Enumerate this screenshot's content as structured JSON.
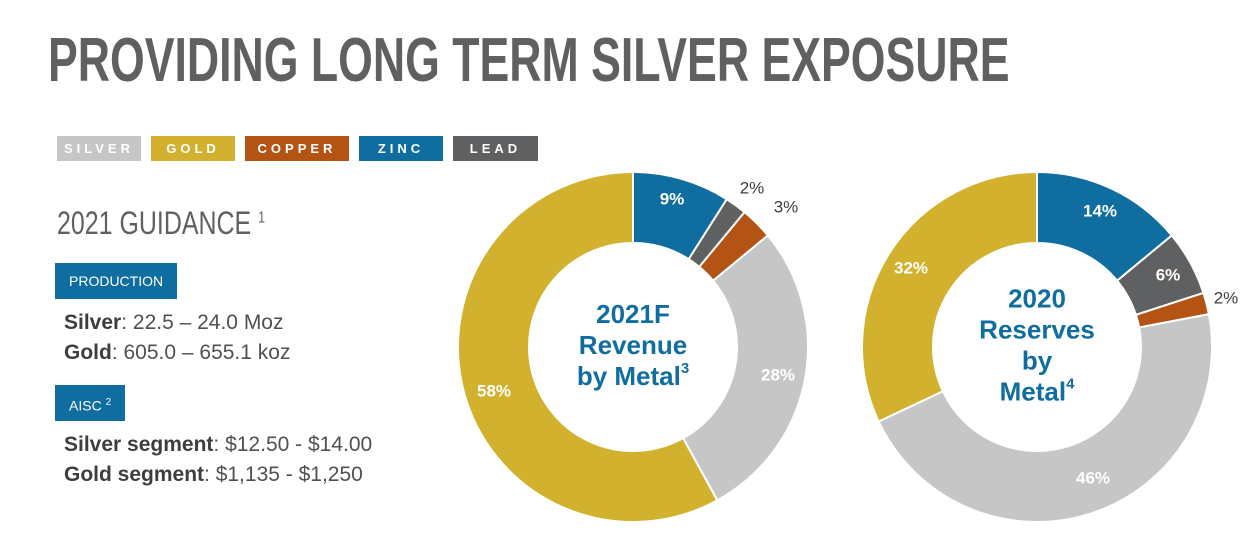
{
  "title": "PROVIDING LONG TERM SILVER EXPOSURE",
  "legend": [
    {
      "label": "SILVER",
      "color": "#c6c6c6"
    },
    {
      "label": "GOLD",
      "color": "#d1b12e"
    },
    {
      "label": "COPPER",
      "color": "#b35414"
    },
    {
      "label": "ZINC",
      "color": "#0f6d9f"
    },
    {
      "label": "LEAD",
      "color": "#5f6062"
    }
  ],
  "guidance": {
    "title": "2021 GUIDANCE",
    "title_sup": "1",
    "production_label": "PRODUCTION",
    "silver_label": "Silver",
    "silver_value": ": 22.5 – 24.0 Moz",
    "gold_label": "Gold",
    "gold_value": ": 605.0 – 655.1 koz",
    "aisc_label": "AISC",
    "aisc_sup": "2",
    "silver_segment_label": "Silver segment",
    "silver_segment_value": ": $12.50 - $14.00",
    "gold_segment_label": "Gold segment",
    "gold_segment_value": ": $1,135 - $1,250"
  },
  "chart_data": [
    {
      "type": "pie",
      "donut": true,
      "center_label_lines": [
        "2021F",
        "Revenue",
        "by Metal"
      ],
      "center_label_sup": "3",
      "categories": [
        "Zinc",
        "Lead",
        "Copper",
        "Silver",
        "Gold"
      ],
      "values": [
        9,
        2,
        3,
        28,
        58
      ],
      "labels": [
        "9%",
        "2%",
        "3%",
        "28%",
        "58%"
      ],
      "colors": [
        "#0f6d9f",
        "#5f6062",
        "#b35414",
        "#c6c6c6",
        "#d1b12e"
      ]
    },
    {
      "type": "pie",
      "donut": true,
      "center_label_lines": [
        "2020",
        "Reserves",
        "by",
        "Metal"
      ],
      "center_label_sup": "4",
      "categories": [
        "Zinc",
        "Lead",
        "Copper",
        "Silver",
        "Gold"
      ],
      "values": [
        14,
        6,
        2,
        46,
        32
      ],
      "labels": [
        "14%",
        "6%",
        "2%",
        "46%",
        "32%"
      ],
      "colors": [
        "#0f6d9f",
        "#5f6062",
        "#b35414",
        "#c6c6c6",
        "#d1b12e"
      ]
    }
  ]
}
